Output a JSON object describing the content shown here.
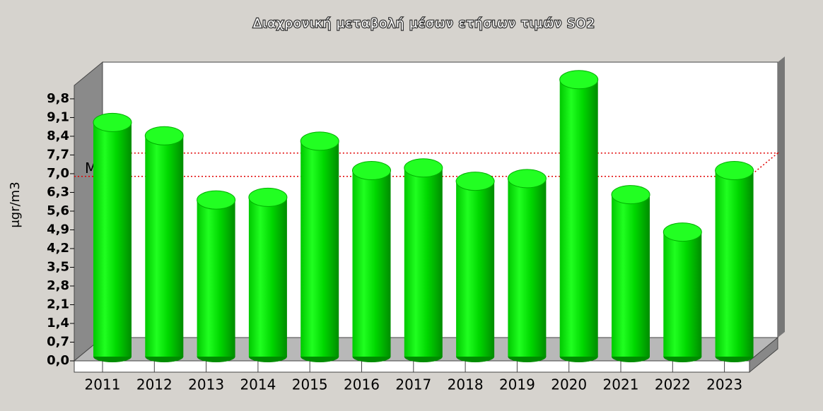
{
  "chart_data": {
    "type": "bar3d",
    "title": "Διαχρονική μεταβολή μέσων ετήσιων τιμών SO2",
    "y_label": "μgr/m3",
    "categories": [
      "2011",
      "2012",
      "2013",
      "2014",
      "2015",
      "2016",
      "2017",
      "2018",
      "2019",
      "2020",
      "2021",
      "2022",
      "2023"
    ],
    "values": [
      8.6,
      8.1,
      5.7,
      5.8,
      7.9,
      6.8,
      6.9,
      6.4,
      6.5,
      10.2,
      5.9,
      4.5,
      6.8
    ],
    "color": "#00e000",
    "mean": {
      "value": 6.9,
      "label": "M.O.",
      "color": "#e00000"
    },
    "ylim": [
      0,
      10.3
    ],
    "yticks": [
      {
        "value": 0,
        "label": "0,0"
      },
      {
        "value": 0.7,
        "label": "0,7"
      },
      {
        "value": 1.4,
        "label": "1,4"
      },
      {
        "value": 2.1,
        "label": "2,1"
      },
      {
        "value": 2.8,
        "label": "2,8"
      },
      {
        "value": 3.5,
        "label": "3,5"
      },
      {
        "value": 4.2,
        "label": "4,2"
      },
      {
        "value": 4.9,
        "label": "4,9"
      },
      {
        "value": 5.6,
        "label": "5,6"
      },
      {
        "value": 6.3,
        "label": "6,3"
      },
      {
        "value": 7,
        "label": "7,0"
      },
      {
        "value": 7.7,
        "label": "7,7"
      },
      {
        "value": 8.4,
        "label": "8,4"
      },
      {
        "value": 9.1,
        "label": "9,1"
      },
      {
        "value": 9.8,
        "label": "9,8"
      }
    ]
  }
}
